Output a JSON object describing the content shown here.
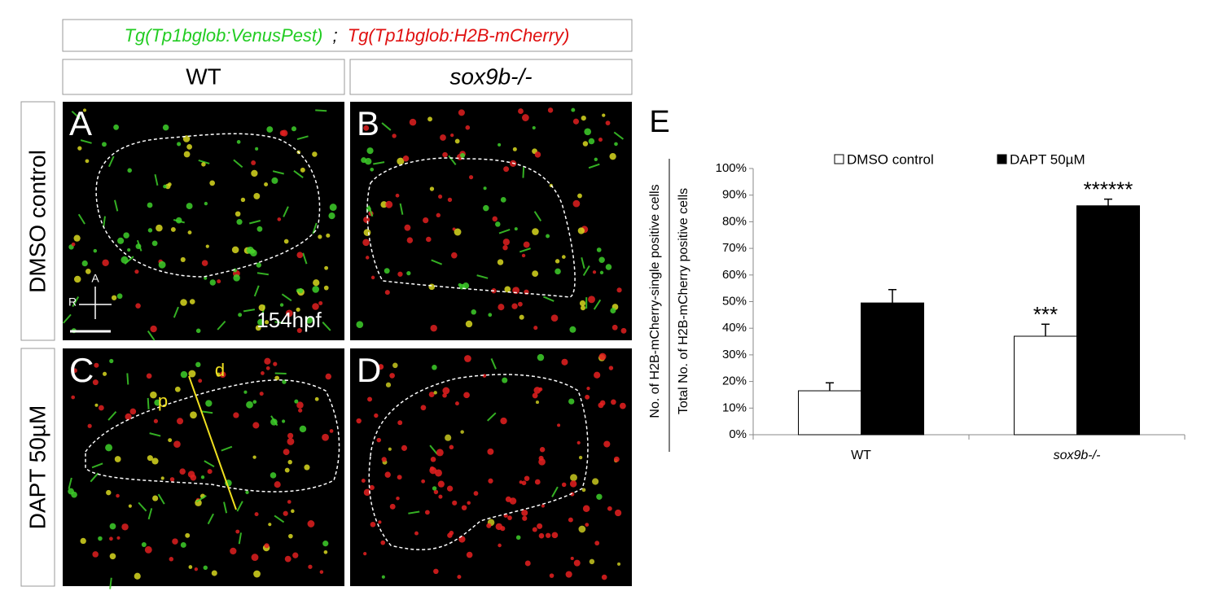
{
  "figure": {
    "header": {
      "left": "Tg(Tp1bglob:VenusPest)",
      "separator": ";",
      "right": "Tg(Tp1bglob:H2B-mCherry)"
    },
    "columns": [
      "WT",
      "sox9b-/-"
    ],
    "rows": [
      "DMSO control",
      "DAPT 50µM"
    ],
    "panels": [
      "A",
      "B",
      "C",
      "D"
    ],
    "orientation": {
      "anterior": "A",
      "right": "R"
    },
    "stage": "154hpf",
    "regions": {
      "proximal": "p",
      "distal": "d"
    }
  },
  "chart_data": {
    "type": "bar",
    "panel_label": "E",
    "y_label": [
      "No. of H2B-mCherry-single positive cells",
      "Total No. of H2B-mCherry positive cells"
    ],
    "categories": [
      "WT",
      "sox9b-/-"
    ],
    "series": [
      {
        "name": "DMSO control",
        "color": "#ffffff",
        "values": [
          16.5,
          37
        ],
        "errors": [
          3,
          4.5
        ],
        "significance": [
          null,
          "***"
        ]
      },
      {
        "name": "DAPT 50µM",
        "color": "#000000",
        "values": [
          49.5,
          86
        ],
        "errors": [
          5,
          2.5
        ],
        "significance": [
          null,
          "******"
        ]
      }
    ],
    "ylim": [
      0,
      100
    ],
    "yticks": [
      {
        "value": 0,
        "label": "0%"
      },
      {
        "value": 10,
        "label": "10%"
      },
      {
        "value": 20,
        "label": "20%"
      },
      {
        "value": 30,
        "label": "30%"
      },
      {
        "value": 40,
        "label": "40%"
      },
      {
        "value": 50,
        "label": "50%"
      },
      {
        "value": 60,
        "label": "60%"
      },
      {
        "value": 70,
        "label": "70%"
      },
      {
        "value": 80,
        "label": "80%"
      },
      {
        "value": 90,
        "label": "90%"
      },
      {
        "value": 100,
        "label": "100%"
      }
    ]
  }
}
